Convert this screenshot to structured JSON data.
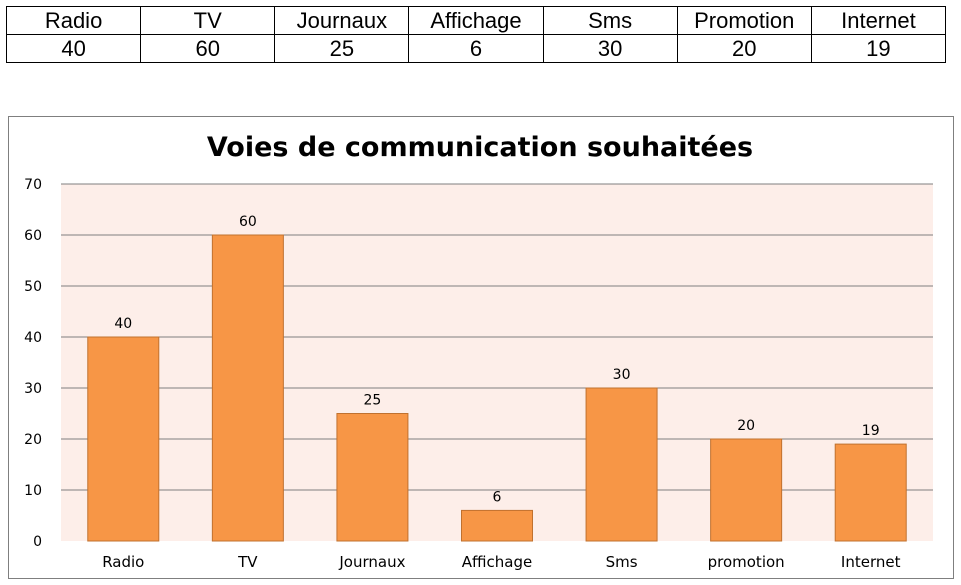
{
  "table": {
    "headers": [
      "Radio",
      "TV",
      "Journaux",
      "Affichage",
      "Sms",
      "Promotion",
      "Internet"
    ],
    "values": [
      "40",
      "60",
      "25",
      "6",
      "30",
      "20",
      "19"
    ]
  },
  "chart_data": {
    "type": "bar",
    "title": "Voies de communication souhaitées",
    "categories": [
      "Radio",
      "TV",
      "Journaux",
      "Affichage",
      "Sms",
      "promotion",
      "Internet"
    ],
    "values": [
      40,
      60,
      25,
      6,
      30,
      20,
      19
    ],
    "xlabel": "",
    "ylabel": "",
    "ylim": [
      0,
      70
    ],
    "yticks": [
      0,
      10,
      20,
      30,
      40,
      50,
      60,
      70
    ],
    "grid": true,
    "legend": "none",
    "colors": {
      "bar_fill": "#f79646",
      "bar_stroke": "#c0712f",
      "plot_background": "#fdeee9",
      "gridline": "#7f7f7f"
    }
  }
}
